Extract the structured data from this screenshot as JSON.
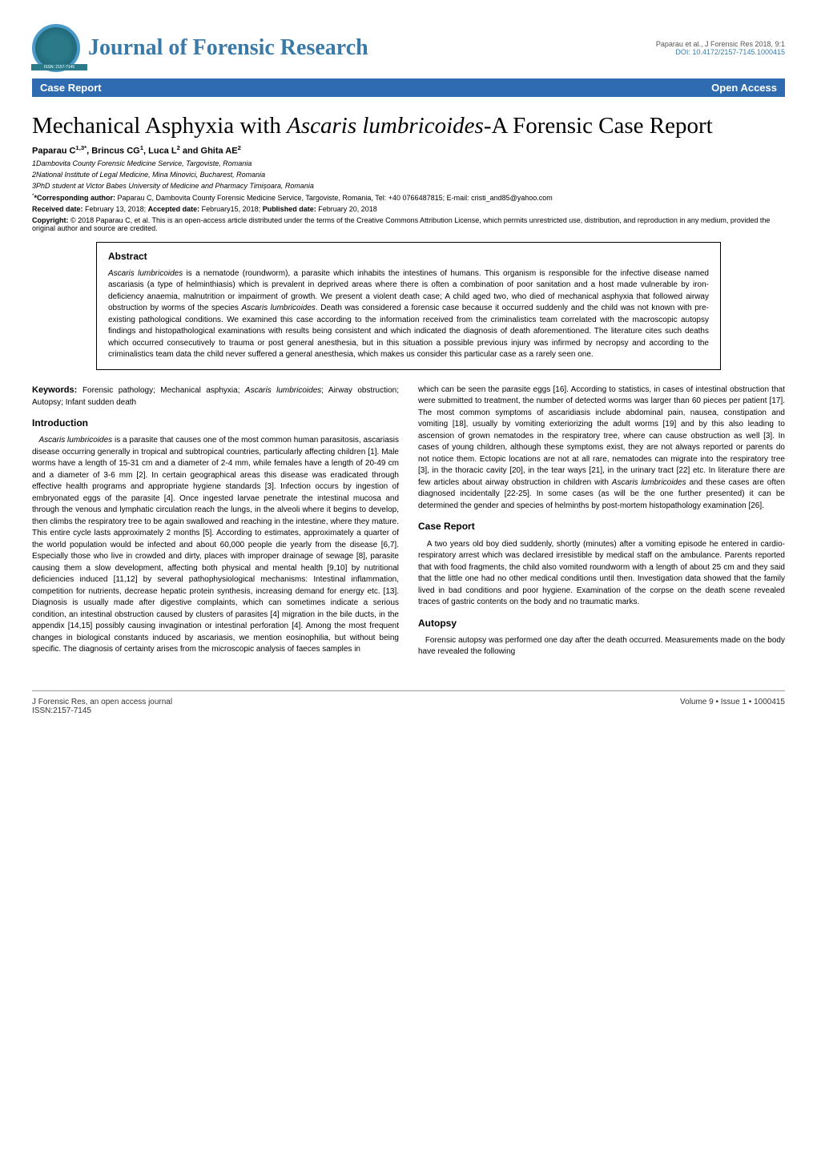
{
  "header": {
    "journal_name": "Journal of Forensic Research",
    "citation": "Paparau et al., J Forensic Res 2018, 9:1",
    "doi": "DOI: 10.4172/2157-7145.1000415",
    "bar_left": "Case Report",
    "bar_right": "Open Access",
    "issn_badge": "ISSN: 2157-7145"
  },
  "colors": {
    "journal_title": "#3a7aa8",
    "bar_bg": "#2e6bb0",
    "bar_text": "#ffffff",
    "doi_link": "#3a7aa8"
  },
  "article": {
    "title_pre": "Mechanical Asphyxia with ",
    "title_italic": "Ascaris lumbricoides",
    "title_post": "-A Forensic Case Report",
    "authors_html": "Paparau C",
    "authors_sup1": "1,3*",
    "authors_2": ", Brincus CG",
    "authors_sup2": "1",
    "authors_3": ", Luca L",
    "authors_sup3": "2",
    "authors_4": " and Ghita AE",
    "authors_sup4": "2",
    "aff1": "1Dambovita County Forensic Medicine Service, Targoviste, Romania",
    "aff2": "2National Institute of Legal Medicine, Mina Minovici, Bucharest, Romania",
    "aff3": "3PhD student at Victor Babes University of Medicine and Pharmacy Timișoara, Romania",
    "corr_label": "*Corresponding author: ",
    "corr_text": "Paparau C, Dambovita County Forensic Medicine Service, Targoviste, Romania, Tel: +40 0766487815; E-mail: cristi_and85@yahoo.com",
    "received_label": "Received date: ",
    "received": "February 13, 2018; ",
    "accepted_label": "Accepted date: ",
    "accepted": "February15, 2018; ",
    "published_label": "Published date: ",
    "published": "February 20, 2018",
    "copyright_label": "Copyright: ",
    "copyright": "© 2018 Paparau C, et al. This is an open-access article distributed under the terms of the Creative Commons Attribution License, which permits unrestricted use, distribution, and reproduction in any medium, provided the original author and source are credited."
  },
  "abstract": {
    "label": "Abstract",
    "text_pre": "",
    "italic1": "Ascaris lumbricoides",
    "text_mid": " is a nematode (roundworm), a parasite which inhabits the intestines of humans. This organism is responsible for the infective disease named ascariasis (a type of helminthiasis) which is prevalent in deprived areas where there is often a combination of poor sanitation and a host made vulnerable by iron-deficiency anaemia, malnutrition or impairment of growth. We present a violent death case; A child aged two, who died of mechanical asphyxia that followed airway obstruction by worms of the species ",
    "italic2": "Ascaris lumbricoides",
    "text_post": ". Death was considered a forensic case because it occurred suddenly and the child was not known with pre-existing pathological conditions. We examined this case according to the information received from the criminalistics team correlated with the macroscopic autopsy findings and histopathological examinations with results being consistent and which indicated the diagnosis of death aforementioned. The literature cites such deaths which occurred consecutively to trauma or post general anesthesia, but in this situation a possible previous injury was infirmed by necropsy and according to the criminalistics team data the child never suffered a general anesthesia, which makes us consider this particular case as a rarely seen one."
  },
  "keywords": {
    "label": "Keywords: ",
    "text_pre": "Forensic pathology; Mechanical asphyxia; ",
    "italic": "Ascaris lumbricoides",
    "text_post": "; Airway obstruction; Autopsy; Infant sudden death"
  },
  "sections": {
    "intro_heading": "Introduction",
    "intro_italic": "Ascaris lumbricoides",
    "intro_text": " is a parasite that causes one of the most common human parasitosis, ascariasis disease occurring generally in tropical and subtropical countries, particularly affecting children [1]. Male worms have a length of 15-31 cm and a diameter of 2-4 mm, while females have a length of 20-49 cm and a diameter of 3-6 mm [2]. In certain geographical areas this disease was eradicated through effective health programs and appropriate hygiene standards [3]. Infection occurs by ingestion of embryonated eggs of the parasite [4]. Once ingested larvae penetrate the intestinal mucosa and through the venous and lymphatic circulation reach the lungs, in the alveoli where it begins to develop, then climbs the respiratory tree to be again swallowed and reaching in the intestine, where they mature. This entire cycle lasts approximately 2 months [5]. According to estimates, approximately a quarter of the world population would be infected and about 60,000 people die yearly from the disease [6,7]. Especially those who live in crowded and dirty, places with improper drainage of sewage [8], parasite causing them a slow development, affecting both physical and mental health [9,10] by nutritional deficiencies induced [11,12] by several pathophysiological mechanisms: Intestinal inflammation, competition for nutrients, decrease hepatic protein synthesis, increasing demand for energy etc. [13]. Diagnosis is usually made after digestive complaints, which can sometimes indicate a serious condition, an intestinal obstruction caused by clusters of parasites [4] migration in the bile ducts, in the appendix [14,15] possibly causing invagination or intestinal perforation [4]. Among the most frequent changes in biological constants induced by ascariasis, we mention eosinophilia, but without being specific. The diagnosis of certainty arises from the microscopic analysis of faeces samples in",
    "col2_p1_pre": "which can be seen the parasite eggs [16]. According to statistics, in cases of intestinal obstruction that were submitted to treatment, the number of detected worms was larger than 60 pieces per patient [17]. The most common symptoms of ascaridiasis include abdominal pain, nausea, constipation and vomiting [18], usually by vomiting exteriorizing the adult worms [19] and by this also leading to ascension of grown nematodes in the respiratory tree, where can cause obstruction as well [3]. In cases of young children, although these symptoms exist, they are not always reported or parents do not notice them. Ectopic locations are not at all rare, nematodes can migrate into the respiratory tree [3], in the thoracic cavity [20], in the tear ways [21], in the urinary tract [22] etc. In literature there are few articles about airway obstruction in children with ",
    "col2_p1_italic": "Ascaris lumbricoides",
    "col2_p1_post": " and these cases are often diagnosed incidentally [22-25]. In some cases (as will be the one further presented) it can be determined the gender and species of helminths by post-mortem histopathology examination [26].",
    "case_heading": "Case Report",
    "case_text": "A two years old boy died suddenly, shortly (minutes) after a vomiting episode he entered in cardio-respiratory arrest which was declared irresistible by medical staff on the ambulance. Parents reported that with food fragments, the child also vomited roundworm with a length of about 25 cm and they said that the little one had no other medical conditions until then. Investigation data showed that the family lived in bad conditions and poor hygiene. Examination of the corpse on the death scene revealed traces of gastric contents on the body and no traumatic marks.",
    "autopsy_heading": "Autopsy",
    "autopsy_text": "Forensic autopsy was performed one day after the death occurred. Measurements made on the body have revealed the following"
  },
  "footer": {
    "left_line1": "J Forensic Res, an open access journal",
    "left_line2": "ISSN:2157-7145",
    "right": "Volume 9 • Issue 1 • 1000415"
  }
}
